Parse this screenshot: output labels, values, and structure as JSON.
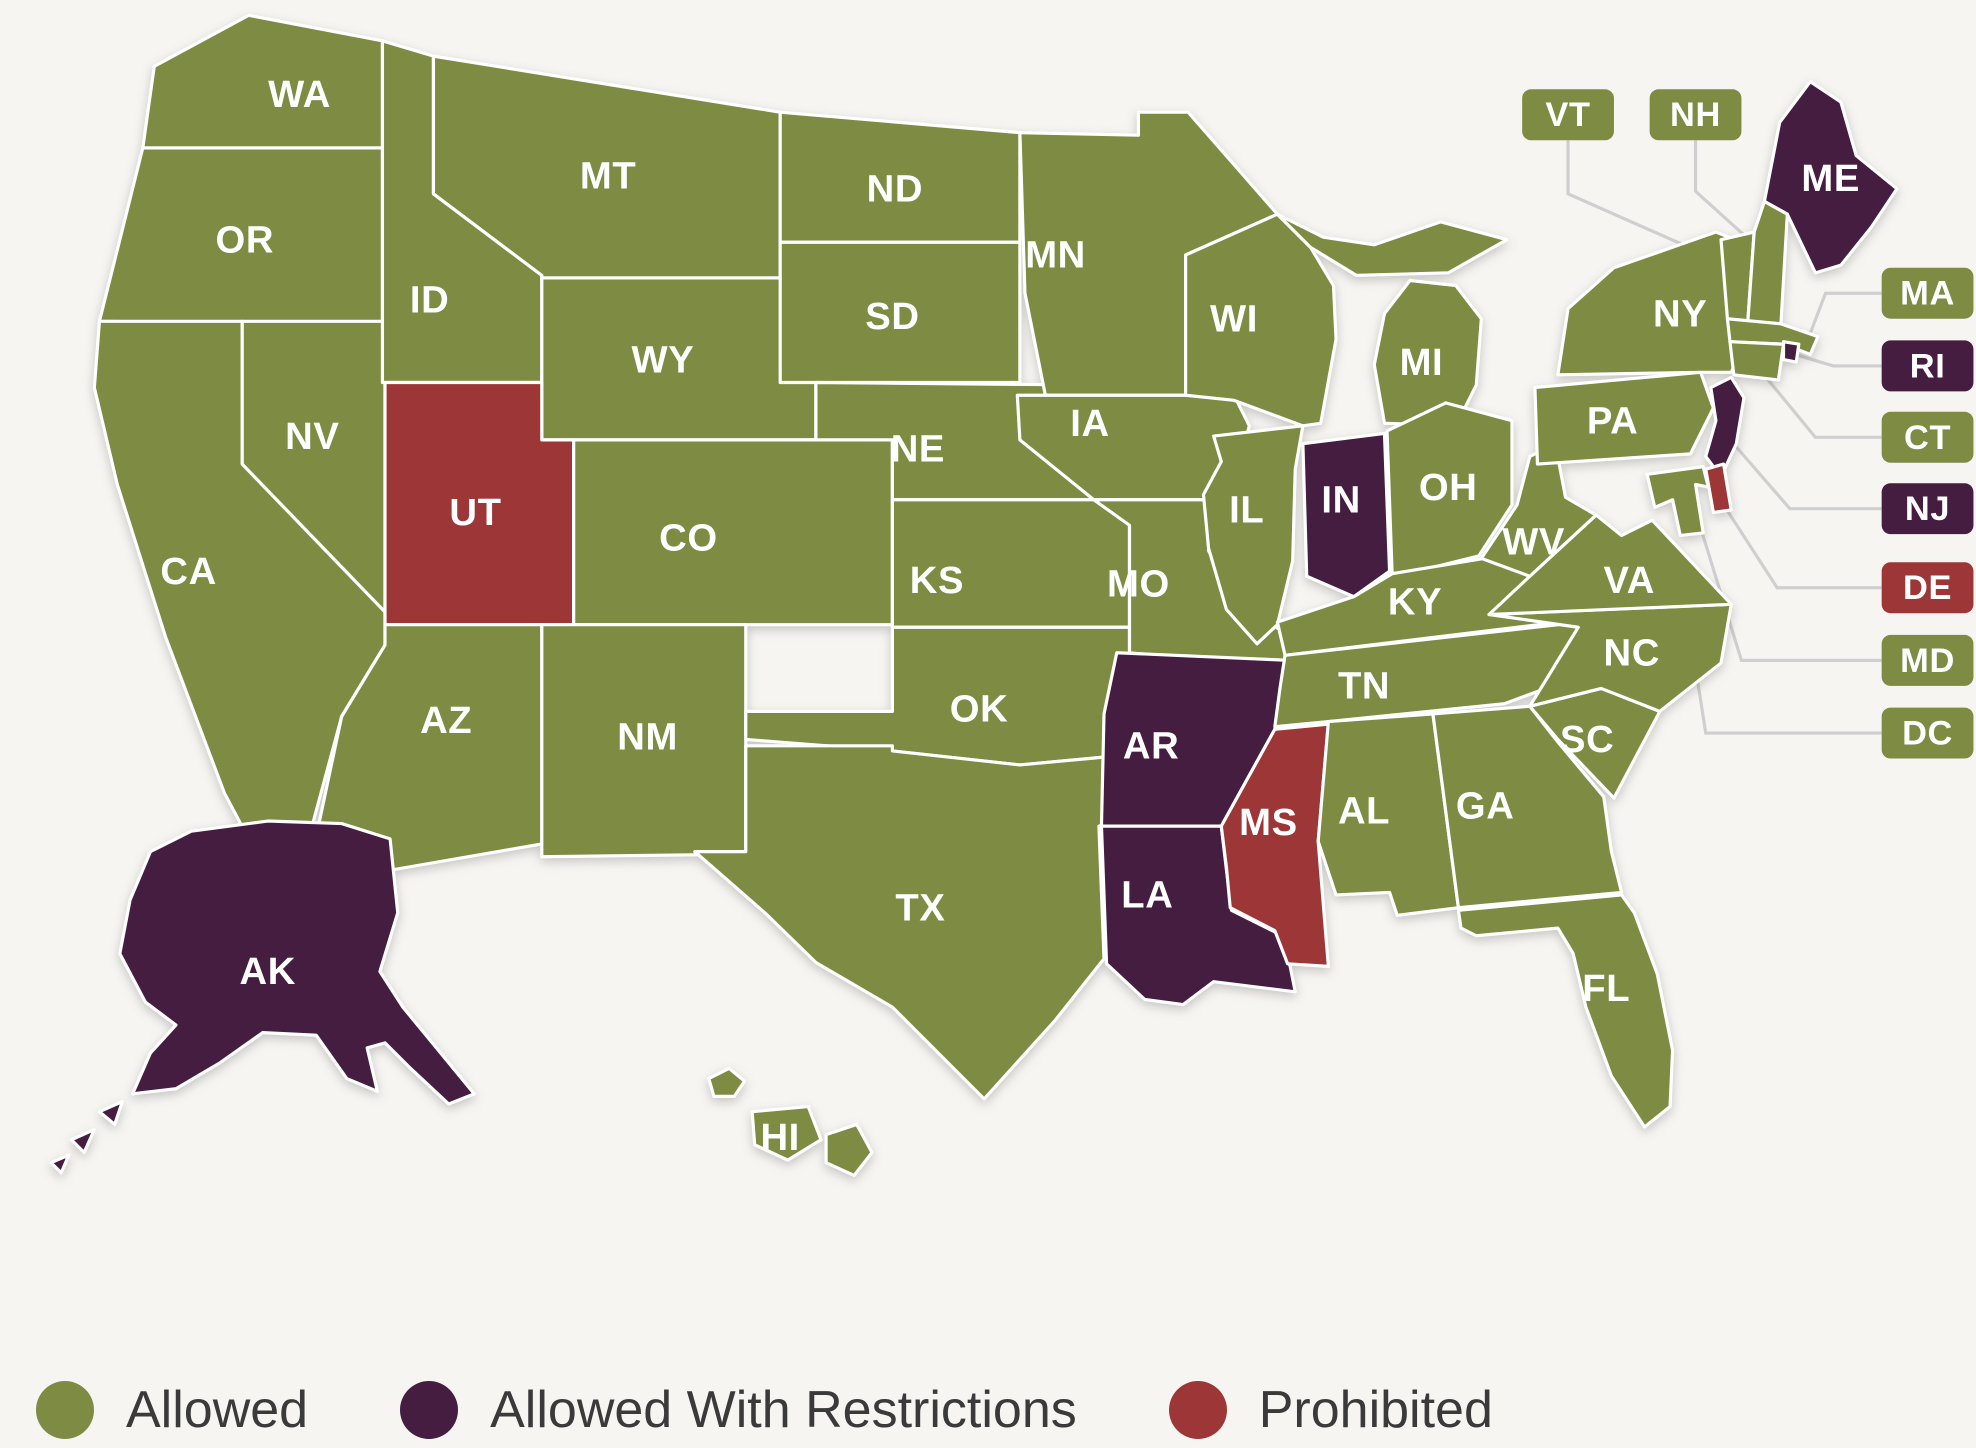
{
  "colors": {
    "allowed": "#7d8b43",
    "restricted": "#451d40",
    "prohibited": "#9d3636",
    "background": "#f6f5f2",
    "state_border": "#ffffff",
    "state_label": "#ffffff",
    "connector": "#cfcfcf",
    "legend_text": "#3a3a3a"
  },
  "legend": {
    "items": [
      {
        "label": "Allowed",
        "status": "allowed"
      },
      {
        "label": "Allowed With Restrictions",
        "status": "restricted"
      },
      {
        "label": "Prohibited",
        "status": "prohibited"
      }
    ]
  },
  "map": {
    "states": [
      {
        "id": "WA",
        "label": "WA",
        "status": "allowed"
      },
      {
        "id": "OR",
        "label": "OR",
        "status": "allowed"
      },
      {
        "id": "CA",
        "label": "CA",
        "status": "allowed"
      },
      {
        "id": "NV",
        "label": "NV",
        "status": "allowed"
      },
      {
        "id": "ID",
        "label": "ID",
        "status": "allowed"
      },
      {
        "id": "MT",
        "label": "MT",
        "status": "allowed"
      },
      {
        "id": "WY",
        "label": "WY",
        "status": "allowed"
      },
      {
        "id": "UT",
        "label": "UT",
        "status": "prohibited"
      },
      {
        "id": "CO",
        "label": "CO",
        "status": "allowed"
      },
      {
        "id": "AZ",
        "label": "AZ",
        "status": "allowed"
      },
      {
        "id": "NM",
        "label": "NM",
        "status": "allowed"
      },
      {
        "id": "ND",
        "label": "ND",
        "status": "allowed"
      },
      {
        "id": "SD",
        "label": "SD",
        "status": "allowed"
      },
      {
        "id": "NE",
        "label": "NE",
        "status": "allowed"
      },
      {
        "id": "KS",
        "label": "KS",
        "status": "allowed"
      },
      {
        "id": "OK",
        "label": "OK",
        "status": "allowed"
      },
      {
        "id": "TX",
        "label": "TX",
        "status": "allowed"
      },
      {
        "id": "MN",
        "label": "MN",
        "status": "allowed"
      },
      {
        "id": "IA",
        "label": "IA",
        "status": "allowed"
      },
      {
        "id": "MO",
        "label": "MO",
        "status": "allowed"
      },
      {
        "id": "AR",
        "label": "AR",
        "status": "restricted"
      },
      {
        "id": "LA",
        "label": "LA",
        "status": "restricted"
      },
      {
        "id": "WI",
        "label": "WI",
        "status": "allowed"
      },
      {
        "id": "IL",
        "label": "IL",
        "status": "allowed"
      },
      {
        "id": "MI",
        "label": "MI",
        "status": "allowed"
      },
      {
        "id": "IN",
        "label": "IN",
        "status": "restricted"
      },
      {
        "id": "OH",
        "label": "OH",
        "status": "allowed"
      },
      {
        "id": "KY",
        "label": "KY",
        "status": "allowed"
      },
      {
        "id": "TN",
        "label": "TN",
        "status": "allowed"
      },
      {
        "id": "MS",
        "label": "MS",
        "status": "prohibited"
      },
      {
        "id": "AL",
        "label": "AL",
        "status": "allowed"
      },
      {
        "id": "GA",
        "label": "GA",
        "status": "allowed"
      },
      {
        "id": "FL",
        "label": "FL",
        "status": "allowed"
      },
      {
        "id": "SC",
        "label": "SC",
        "status": "allowed"
      },
      {
        "id": "NC",
        "label": "NC",
        "status": "allowed"
      },
      {
        "id": "VA",
        "label": "VA",
        "status": "allowed"
      },
      {
        "id": "WV",
        "label": "WV",
        "status": "allowed"
      },
      {
        "id": "PA",
        "label": "PA",
        "status": "allowed"
      },
      {
        "id": "NY",
        "label": "NY",
        "status": "allowed"
      },
      {
        "id": "ME",
        "label": "ME",
        "status": "restricted"
      },
      {
        "id": "VT",
        "label": "VT",
        "status": "allowed"
      },
      {
        "id": "NH",
        "label": "NH",
        "status": "allowed"
      },
      {
        "id": "MA",
        "label": "MA",
        "status": "allowed"
      },
      {
        "id": "RI",
        "label": "RI",
        "status": "restricted"
      },
      {
        "id": "CT",
        "label": "CT",
        "status": "allowed"
      },
      {
        "id": "NJ",
        "label": "NJ",
        "status": "restricted"
      },
      {
        "id": "DE",
        "label": "DE",
        "status": "prohibited"
      },
      {
        "id": "MD",
        "label": "MD",
        "status": "allowed"
      },
      {
        "id": "AK",
        "label": "AK",
        "status": "restricted"
      },
      {
        "id": "HI",
        "label": "HI",
        "status": "allowed"
      }
    ],
    "callouts": [
      {
        "id": "VT",
        "label": "VT",
        "status": "allowed"
      },
      {
        "id": "NH",
        "label": "NH",
        "status": "allowed"
      },
      {
        "id": "MA",
        "label": "MA",
        "status": "allowed"
      },
      {
        "id": "RI",
        "label": "RI",
        "status": "restricted"
      },
      {
        "id": "CT",
        "label": "CT",
        "status": "allowed"
      },
      {
        "id": "NJ",
        "label": "NJ",
        "status": "restricted"
      },
      {
        "id": "DE",
        "label": "DE",
        "status": "prohibited"
      },
      {
        "id": "MD",
        "label": "MD",
        "status": "allowed"
      },
      {
        "id": "DC",
        "label": "DC",
        "status": "allowed"
      }
    ]
  }
}
